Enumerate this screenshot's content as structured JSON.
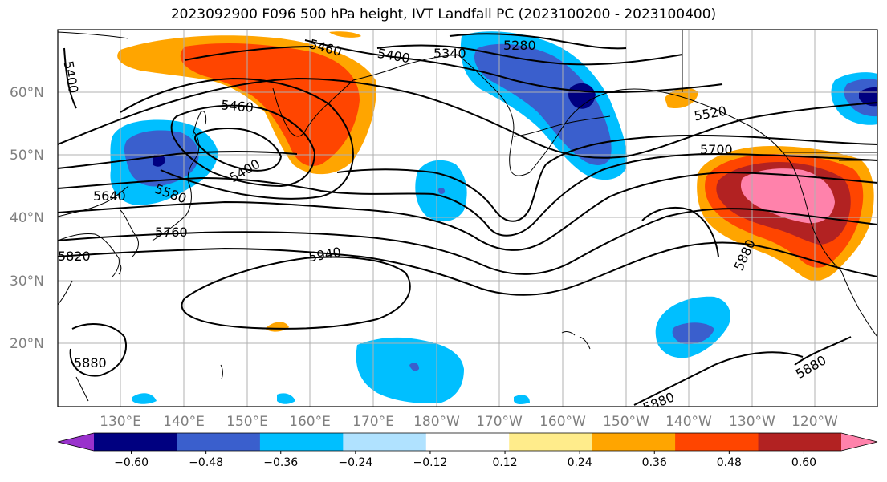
{
  "title": "2023092900 F096 500 hPa height, IVT Landfall PC (2023100200 - 2023100400)",
  "lat_labels": [
    "60°N",
    "50°N",
    "40°N",
    "30°N",
    "20°N"
  ],
  "lon_labels": [
    "130°E",
    "140°E",
    "150°E",
    "160°E",
    "170°E",
    "180°W",
    "170°W",
    "160°W",
    "150°W",
    "140°W",
    "130°W",
    "120°W"
  ],
  "contour_labels": [
    "5400",
    "5460",
    "5400",
    "5340",
    "5280",
    "5460",
    "5400",
    "5520",
    "5640",
    "5580",
    "5700",
    "5760",
    "5820",
    "5940",
    "5880",
    "5880",
    "5880",
    "5880"
  ],
  "colorbar": {
    "labels": [
      "−0.60",
      "−0.48",
      "−0.36",
      "−0.24",
      "−0.12",
      "0.12",
      "0.24",
      "0.36",
      "0.48",
      "0.60"
    ],
    "colors": [
      "#9932cc",
      "#000080",
      "#3a5fcd",
      "#00bfff",
      "#b0e2ff",
      "#ffffff",
      "#ffec8b",
      "#ffa500",
      "#ff4500",
      "#b22222",
      "#ff82ab"
    ]
  }
}
